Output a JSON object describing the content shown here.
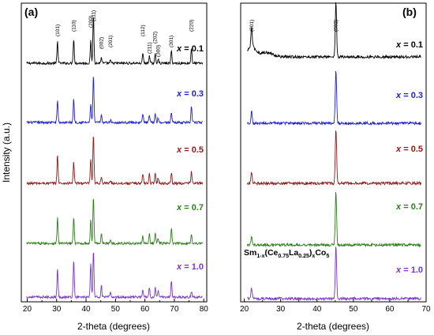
{
  "chart_data": [
    {
      "type": "line",
      "panel_label": "(a)",
      "xlabel": "2-theta (degrees)",
      "ylabel": "Intensity (a.u.)",
      "xlim": [
        18,
        81
      ],
      "xticks": [
        "20",
        "30",
        "40",
        "50",
        "60",
        "70",
        "80"
      ],
      "peaks": [
        30.3,
        35.8,
        41.6,
        42.5,
        45.2,
        48.3,
        59.3,
        61.5,
        63.5,
        64.5,
        69.0,
        75.8
      ],
      "peak_annotations": [
        {
          "text": "(101)",
          "x": 30.3
        },
        {
          "text": "(110)",
          "x": 35.8
        },
        {
          "text": "(200)",
          "x": 41.6
        },
        {
          "text": "(111)",
          "x": 42.5
        },
        {
          "text": "(002)",
          "x": 45.2
        },
        {
          "text": "(201)",
          "x": 48.3
        },
        {
          "text": "(112)",
          "x": 59.3
        },
        {
          "text": "(211)",
          "x": 61.5
        },
        {
          "text": "(202)",
          "x": 63.5
        },
        {
          "text": "(300)",
          "x": 64.5
        },
        {
          "text": "(301)",
          "x": 69.0
        },
        {
          "text": "(220)",
          "x": 75.8
        }
      ],
      "series": [
        {
          "name": "x = 0.1",
          "x_value": "0.1",
          "color": "#000000",
          "peak_heights": [
            0.45,
            0.5,
            0.45,
            1.0,
            0.12,
            0.05,
            0.2,
            0.15,
            0.18,
            0.1,
            0.25,
            0.3
          ]
        },
        {
          "name": "x = 0.3",
          "x_value": "0.3",
          "color": "#1f1fd6",
          "peak_heights": [
            0.48,
            0.5,
            0.4,
            1.0,
            0.15,
            0.06,
            0.18,
            0.14,
            0.2,
            0.1,
            0.22,
            0.32
          ]
        },
        {
          "name": "x = 0.5",
          "x_value": "0.5",
          "color": "#8b1a1a",
          "peak_heights": [
            0.6,
            0.45,
            0.5,
            1.0,
            0.15,
            0.06,
            0.2,
            0.2,
            0.22,
            0.12,
            0.22,
            0.25
          ]
        },
        {
          "name": "x = 0.7",
          "x_value": "0.7",
          "color": "#2e7d1a",
          "peak_heights": [
            0.55,
            0.55,
            0.5,
            1.0,
            0.22,
            0.08,
            0.15,
            0.2,
            0.22,
            0.12,
            0.3,
            0.2
          ]
        },
        {
          "name": "x = 1.0",
          "x_value": "1.0",
          "color": "#7a33cc",
          "peak_heights": [
            0.6,
            0.8,
            0.7,
            1.0,
            0.25,
            0.1,
            0.15,
            0.18,
            0.2,
            0.12,
            0.35,
            0.12
          ]
        }
      ]
    },
    {
      "type": "line",
      "panel_label": "(b)",
      "xlabel": "2-theta (degrees)",
      "ylabel": "",
      "xlim": [
        19,
        70
      ],
      "xticks": [
        "20",
        "30",
        "40",
        "50",
        "60",
        "70"
      ],
      "peaks": [
        22.0,
        45.2
      ],
      "peak_annotations": [
        {
          "text": "(001)",
          "x": 22.0
        },
        {
          "text": "(002)",
          "x": 45.2
        }
      ],
      "formula": {
        "main": "Sm",
        "sub1": "1-x",
        "mid1": "(Ce",
        "sub2": "0.75",
        "mid2": "La",
        "sub3": "0.25",
        "mid3": ")",
        "sub4": "x",
        "mid4": "Co",
        "sub5": "5"
      },
      "series": [
        {
          "name": "x = 0.1",
          "x_value": "0.1",
          "color": "#000000",
          "peak_heights": [
            0.35,
            1.0
          ]
        },
        {
          "name": "x = 0.3",
          "x_value": "0.3",
          "color": "#1f1fd6",
          "peak_heights": [
            0.22,
            1.0
          ]
        },
        {
          "name": "x = 0.5",
          "x_value": "0.5",
          "color": "#8b1a1a",
          "peak_heights": [
            0.2,
            1.0
          ]
        },
        {
          "name": "x = 0.7",
          "x_value": "0.7",
          "color": "#2e7d1a",
          "peak_heights": [
            0.15,
            1.0
          ]
        },
        {
          "name": "x = 1.0",
          "x_value": "1.0",
          "color": "#7a33cc",
          "peak_heights": [
            0.2,
            1.0
          ]
        }
      ]
    }
  ]
}
